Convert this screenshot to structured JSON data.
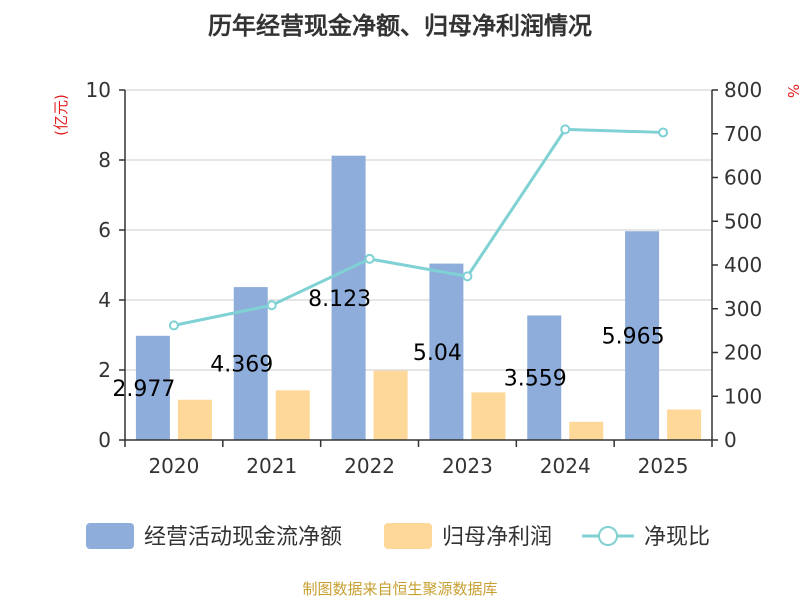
{
  "title": "历年经营现金净额、归母净利润情况",
  "source": "制图数据来自恒生聚源数据库",
  "colors": {
    "bar1": "#8eaddb",
    "bar2": "#fdd899",
    "line": "#7fd1d4",
    "axis": "#333333",
    "grid": "#cccccc",
    "unit": "#e02020"
  },
  "chart_data": {
    "type": "bar",
    "categories": [
      "2020",
      "2021",
      "2022",
      "2023",
      "2024",
      "2025"
    ],
    "series": [
      {
        "name": "经营活动现金流净额",
        "type": "bar",
        "axis": "left",
        "values": [
          2.977,
          4.369,
          8.123,
          5.04,
          3.559,
          5.965
        ],
        "labels": [
          "2.977",
          "4.369",
          "8.123",
          "5.04",
          "3.559",
          "5.965"
        ]
      },
      {
        "name": "归母净利润",
        "type": "bar",
        "axis": "left",
        "values": [
          1.15,
          1.42,
          1.98,
          1.36,
          0.52,
          0.87
        ]
      },
      {
        "name": "净现比",
        "type": "line",
        "axis": "right",
        "values": [
          262,
          308,
          414,
          374,
          710,
          703
        ]
      }
    ],
    "y_left": {
      "unit": "(亿元)",
      "min": 0,
      "max": 10,
      "ticks": [
        0,
        2,
        4,
        6,
        8,
        10
      ]
    },
    "y_right": {
      "unit": "%",
      "min": 0,
      "max": 800,
      "ticks": [
        0,
        100,
        200,
        300,
        400,
        500,
        600,
        700,
        800
      ]
    },
    "grid": true,
    "legend": "bottom"
  }
}
